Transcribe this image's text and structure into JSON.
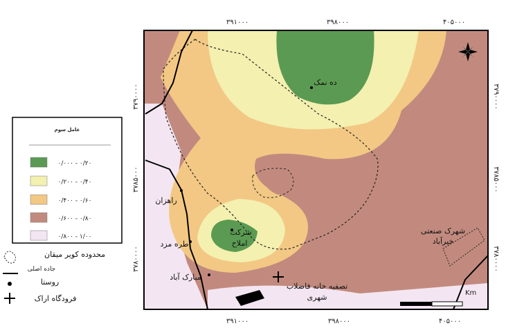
{
  "map": {
    "colors": {
      "class1": "#5b9a52",
      "class2": "#f3f0b0",
      "class3": "#f2c884",
      "class4": "#c28a7e",
      "class5": "#f3e6f2",
      "frame": "#000000"
    },
    "ticks": {
      "top": [
        "۳۹۱۰۰۰",
        "۳۹۸۰۰۰",
        "۴۰۵۰۰۰"
      ],
      "bottom": [
        "۳۹۱۰۰۰",
        "۳۹۸۰۰۰",
        "۴۰۵۰۰۰"
      ],
      "left": [
        "۳۷۹۰۰۰۰",
        "۳۷۸۵۰۰۰",
        "۳۷۸۰۰۰۰"
      ],
      "right": [
        "۳۷۹۰۰۰۰",
        "۳۷۸۵۰۰۰",
        "۳۷۸۰۰۰۰"
      ]
    },
    "places": {
      "deh_namak": "ده نمک",
      "rahzan": "راهزان",
      "tereh_mazd": "طره مزد",
      "mobarak_abad": "مبارک آباد",
      "sherkat_1": "شرکت",
      "sherkat_2": "املاح",
      "tasfiye_1": "تصفیه خانه فاضلاب",
      "tasfiye_2": "شهری",
      "shahrak_1": "شهرک صنعتی",
      "shahrak_2": "خیرآباد"
    },
    "scale_label": "Km"
  },
  "legend": {
    "title": "عامل سوم",
    "classes": [
      "۰/۰۰۰ - ۰/۲۰",
      "۰/۲۰۰ - ۰/۴۰",
      "۰/۴۰۰ - ۰/۶۰",
      "۰/۶۰۰ - ۰/۸۰",
      "۰/۸۰۰ - ۱/۰۰"
    ],
    "boundary": "محدوده کویر میقان",
    "road": "جاده اصلی",
    "village": "روستا",
    "airport": "فرودگاه اراک"
  }
}
